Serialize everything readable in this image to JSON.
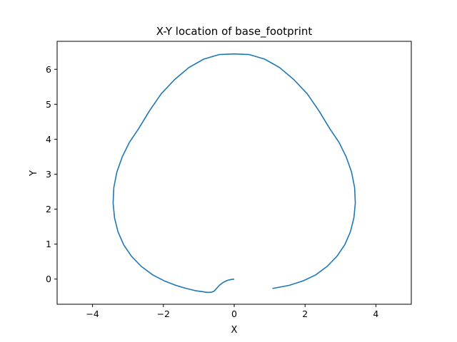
{
  "chart_data": {
    "type": "line",
    "title": "X-Y location of base_footprint",
    "xlabel": "X",
    "ylabel": "Y",
    "xlim": [
      -5,
      5
    ],
    "ylim": [
      -0.72,
      6.8
    ],
    "xticks": [
      -4,
      -2,
      0,
      2,
      4
    ],
    "xtick_labels": [
      "−4",
      "−2",
      "0",
      "2",
      "4"
    ],
    "yticks": [
      0,
      1,
      2,
      3,
      4,
      5,
      6
    ],
    "ytick_labels": [
      "0",
      "1",
      "2",
      "3",
      "4",
      "5",
      "6"
    ],
    "grid": false,
    "series": [
      {
        "color": "#1f77b4",
        "x": [
          0.0,
          -0.08,
          -0.2,
          -0.32,
          -0.42,
          -0.5,
          -0.56,
          -0.62,
          -0.68,
          -0.78,
          -0.9,
          -1.1,
          -1.35,
          -1.65,
          -1.98,
          -2.3,
          -2.62,
          -2.9,
          -3.12,
          -3.28,
          -3.38,
          -3.42,
          -3.4,
          -3.31,
          -3.16,
          -2.96,
          -2.7,
          -2.4,
          -2.06,
          -1.68,
          -1.28,
          -0.86,
          -0.43,
          0.0,
          0.43,
          0.86,
          1.28,
          1.68,
          2.06,
          2.4,
          2.7,
          2.96,
          3.16,
          3.31,
          3.4,
          3.42,
          3.38,
          3.28,
          3.12,
          2.9,
          2.62,
          2.3,
          1.95,
          1.55,
          1.08
        ],
        "y": [
          0.0,
          -0.01,
          -0.04,
          -0.1,
          -0.18,
          -0.27,
          -0.34,
          -0.37,
          -0.38,
          -0.38,
          -0.36,
          -0.33,
          -0.27,
          -0.18,
          -0.05,
          0.12,
          0.36,
          0.65,
          0.98,
          1.35,
          1.75,
          2.17,
          2.62,
          3.07,
          3.5,
          3.91,
          4.3,
          4.8,
          5.3,
          5.71,
          6.05,
          6.29,
          6.42,
          6.44,
          6.42,
          6.29,
          6.05,
          5.71,
          5.3,
          4.8,
          4.3,
          3.91,
          3.5,
          3.07,
          2.62,
          2.17,
          1.75,
          1.35,
          0.98,
          0.65,
          0.36,
          0.12,
          -0.05,
          -0.18,
          -0.27
        ]
      }
    ]
  }
}
